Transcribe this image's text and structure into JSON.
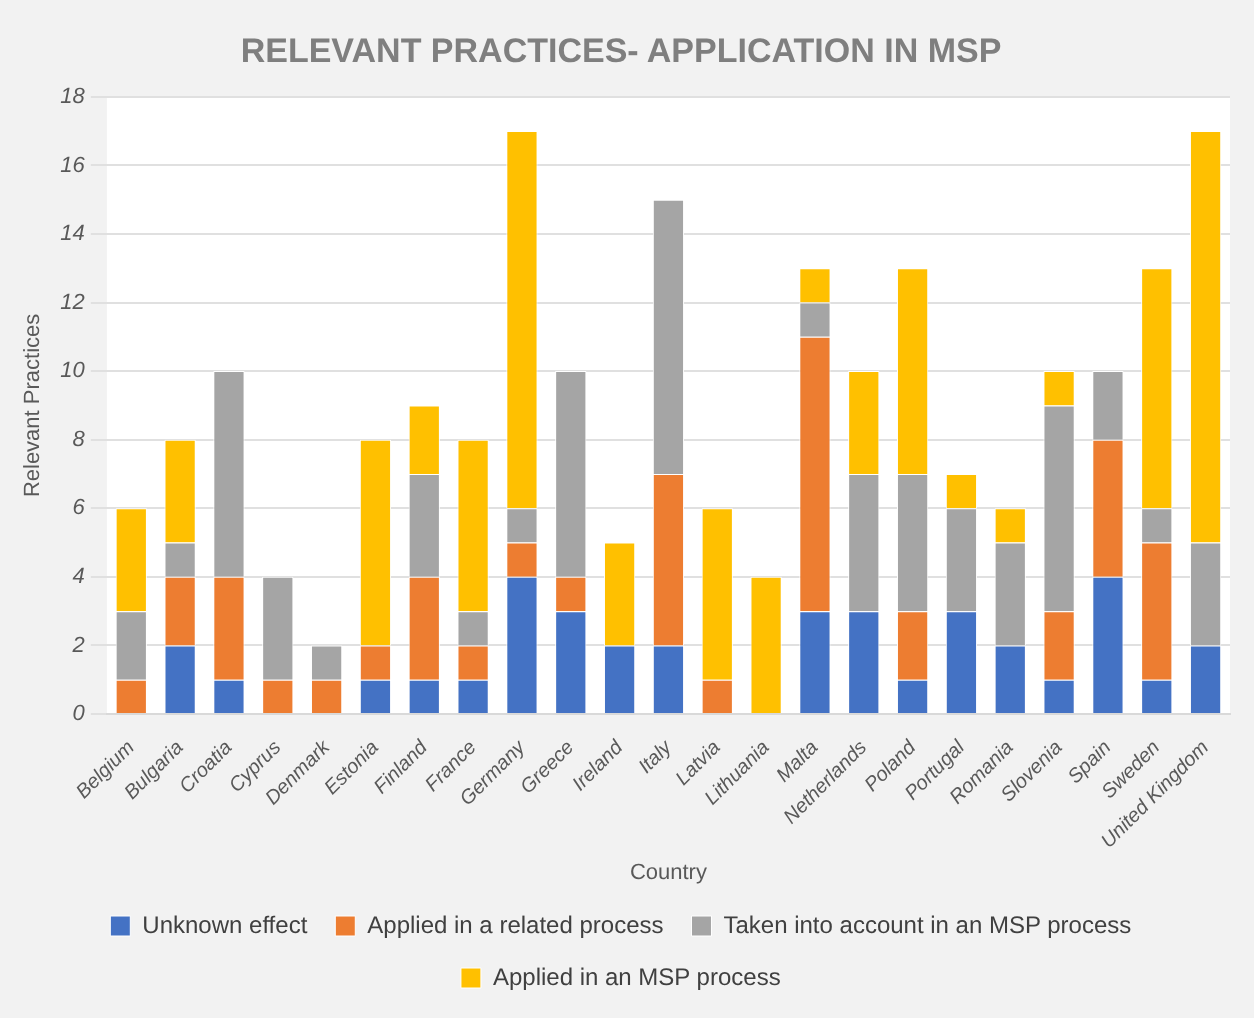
{
  "chart_data": {
    "type": "bar",
    "title": "RELEVANT PRACTICES- APPLICATION IN MSP",
    "xlabel": "Country",
    "ylabel": "Relevant Practices",
    "categories": [
      "Belgium",
      "Bulgaria",
      "Croatia",
      "Cyprus",
      "Denmark",
      "Estonia",
      "Finland",
      "France",
      "Germany",
      "Greece",
      "Ireland",
      "Italy",
      "Latvia",
      "Lithuania",
      "Malta",
      "Netherlands",
      "Poland",
      "Portugal",
      "Romania",
      "Slovenia",
      "Spain",
      "Sweden",
      "United Kingdom"
    ],
    "stacked": true,
    "ylim": [
      0,
      18
    ],
    "yticks": [
      0,
      2,
      4,
      6,
      8,
      10,
      12,
      14,
      16,
      18
    ],
    "grid": "y",
    "legend": "bottom",
    "series": [
      {
        "name": "Unknown effect",
        "color": "#4472c4",
        "values": [
          0,
          2,
          1,
          0,
          0,
          1,
          1,
          1,
          4,
          3,
          2,
          2,
          0,
          0,
          3,
          3,
          1,
          3,
          2,
          1,
          4,
          1,
          2
        ]
      },
      {
        "name": "Applied in a related process",
        "color": "#ed7d31",
        "values": [
          1,
          2,
          3,
          1,
          1,
          1,
          3,
          1,
          1,
          1,
          0,
          5,
          1,
          0,
          8,
          0,
          2,
          0,
          0,
          2,
          4,
          4,
          0
        ]
      },
      {
        "name": "Taken into account in an MSP process",
        "color": "#a5a5a5",
        "values": [
          2,
          1,
          6,
          3,
          1,
          0,
          3,
          1,
          1,
          6,
          0,
          8,
          0,
          0,
          1,
          4,
          4,
          3,
          3,
          6,
          2,
          1,
          3
        ]
      },
      {
        "name": "Applied in an MSP process",
        "color": "#ffc000",
        "values": [
          3,
          3,
          0,
          0,
          0,
          6,
          2,
          5,
          11,
          0,
          3,
          0,
          5,
          4,
          1,
          3,
          6,
          1,
          1,
          1,
          0,
          7,
          12
        ]
      }
    ]
  }
}
